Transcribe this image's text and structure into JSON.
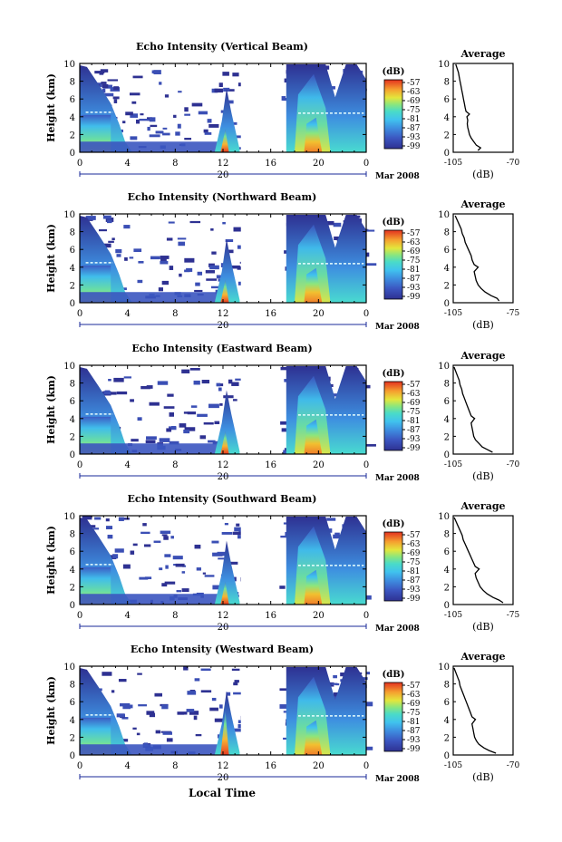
{
  "figure": {
    "xlabel": "Local Time",
    "colors": {
      "colorbar": [
        "#2e3192",
        "#3b4fb5",
        "#3f75d6",
        "#3ea0e8",
        "#3fc6ee",
        "#49dbd0",
        "#6fe39b",
        "#a8e85e",
        "#e8e63a",
        "#f7b532",
        "#f07d2a",
        "#e63a22"
      ],
      "background": "#ffffff"
    }
  },
  "chart_data": [
    {
      "type": "heatmap",
      "title": "Echo Intensity (Vertical Beam)",
      "ylabel": "Height (km)",
      "x_ticks": [
        "0",
        "4",
        "8",
        "12",
        "16",
        "20",
        "0"
      ],
      "x_range_hours": [
        0,
        24
      ],
      "y_ticks": [
        "0",
        "2",
        "4",
        "6",
        "8",
        "10"
      ],
      "ylim": [
        0,
        10
      ],
      "date_day": "20",
      "date_month_year": "Mar 2008",
      "colorbar": {
        "label": "(dB)",
        "ticks": [
          "-57",
          "-63",
          "-69",
          "-75",
          "-81",
          "-87",
          "-93",
          "-99"
        ]
      },
      "data_gap_hours": [
        13.5,
        16.7
      ],
      "profile": {
        "title": "Average",
        "xlabel": "(dB)",
        "xlim": [
          -105,
          -70
        ],
        "x_tick_labels": [
          "-105",
          "-70"
        ],
        "y_ticks": [
          "0",
          "2",
          "4",
          "6",
          "8",
          "10"
        ],
        "points": [
          [
            -90.5,
            0.2
          ],
          [
            -89,
            0.5
          ],
          [
            -91.5,
            0.8
          ],
          [
            -93,
            1.2
          ],
          [
            -94.5,
            1.6
          ],
          [
            -95.5,
            2.0
          ],
          [
            -96,
            2.4
          ],
          [
            -96.5,
            2.8
          ],
          [
            -96.8,
            3.2
          ],
          [
            -96.5,
            3.6
          ],
          [
            -97,
            4.0
          ],
          [
            -95.5,
            4.3
          ],
          [
            -97.5,
            4.6
          ],
          [
            -98,
            5.0
          ],
          [
            -98.5,
            5.5
          ],
          [
            -99,
            6.0
          ],
          [
            -99.5,
            6.5
          ],
          [
            -100,
            7.0
          ],
          [
            -100.5,
            7.5
          ],
          [
            -101,
            8.0
          ],
          [
            -101.5,
            8.5
          ],
          [
            -102,
            9.0
          ],
          [
            -102.8,
            9.5
          ],
          [
            -103.5,
            9.9
          ]
        ]
      }
    },
    {
      "type": "heatmap",
      "title": "Echo Intensity (Northward Beam)",
      "ylabel": "Height (km)",
      "x_ticks": [
        "0",
        "4",
        "8",
        "12",
        "16",
        "20",
        "0"
      ],
      "x_range_hours": [
        0,
        24
      ],
      "y_ticks": [
        "0",
        "2",
        "4",
        "6",
        "8",
        "10"
      ],
      "ylim": [
        0,
        10
      ],
      "date_day": "20",
      "date_month_year": "Mar 2008",
      "colorbar": {
        "label": "(dB)",
        "ticks": [
          "-57",
          "-63",
          "-69",
          "-75",
          "-81",
          "-87",
          "-93",
          "-99"
        ]
      },
      "data_gap_hours": [
        13.5,
        16.7
      ],
      "profile": {
        "title": "Average",
        "xlabel": "(dB)",
        "xlim": [
          -105,
          -75
        ],
        "x_tick_labels": [
          "-105",
          "-75"
        ],
        "y_ticks": [
          "0",
          "2",
          "4",
          "6",
          "8",
          "10"
        ],
        "points": [
          [
            -82,
            0.2
          ],
          [
            -83,
            0.5
          ],
          [
            -86,
            0.8
          ],
          [
            -89,
            1.2
          ],
          [
            -91,
            1.6
          ],
          [
            -92.5,
            2.0
          ],
          [
            -93.5,
            2.5
          ],
          [
            -94,
            3.0
          ],
          [
            -94.5,
            3.5
          ],
          [
            -92.5,
            4.0
          ],
          [
            -94.5,
            4.3
          ],
          [
            -95.5,
            4.8
          ],
          [
            -96,
            5.3
          ],
          [
            -97,
            5.8
          ],
          [
            -98,
            6.3
          ],
          [
            -99,
            6.8
          ],
          [
            -99.5,
            7.3
          ],
          [
            -100.5,
            7.8
          ],
          [
            -101,
            8.3
          ],
          [
            -102,
            8.8
          ],
          [
            -103,
            9.3
          ],
          [
            -104,
            9.8
          ]
        ]
      }
    },
    {
      "type": "heatmap",
      "title": "Echo Intensity (Eastward Beam)",
      "ylabel": "Height (km)",
      "x_ticks": [
        "0",
        "4",
        "8",
        "12",
        "16",
        "20",
        "0"
      ],
      "x_range_hours": [
        0,
        24
      ],
      "y_ticks": [
        "0",
        "2",
        "4",
        "6",
        "8",
        "10"
      ],
      "ylim": [
        0,
        10
      ],
      "date_day": "20",
      "date_month_year": "Mar 2008",
      "colorbar": {
        "label": "(dB)",
        "ticks": [
          "-57",
          "-63",
          "-69",
          "-75",
          "-81",
          "-87",
          "-93",
          "-99"
        ]
      },
      "data_gap_hours": [
        13.5,
        16.7
      ],
      "profile": {
        "title": "Average",
        "xlabel": "(dB)",
        "xlim": [
          -105,
          -70
        ],
        "x_tick_labels": [
          "-105",
          "-70"
        ],
        "y_ticks": [
          "0",
          "2",
          "4",
          "6",
          "8",
          "10"
        ],
        "points": [
          [
            -82,
            0.2
          ],
          [
            -85,
            0.5
          ],
          [
            -88,
            0.8
          ],
          [
            -90,
            1.2
          ],
          [
            -92,
            1.6
          ],
          [
            -93,
            2.0
          ],
          [
            -93.5,
            2.5
          ],
          [
            -94,
            3.0
          ],
          [
            -94.5,
            3.5
          ],
          [
            -92.5,
            4.0
          ],
          [
            -94.5,
            4.3
          ],
          [
            -95.5,
            4.8
          ],
          [
            -96.5,
            5.3
          ],
          [
            -97.5,
            5.8
          ],
          [
            -98.5,
            6.3
          ],
          [
            -99.5,
            6.8
          ],
          [
            -100,
            7.3
          ],
          [
            -101,
            7.8
          ],
          [
            -101.5,
            8.3
          ],
          [
            -102.5,
            8.8
          ],
          [
            -103.5,
            9.3
          ],
          [
            -104.5,
            9.8
          ]
        ]
      }
    },
    {
      "type": "heatmap",
      "title": "Echo Intensity (Southward Beam)",
      "ylabel": "Height (km)",
      "x_ticks": [
        "0",
        "4",
        "8",
        "12",
        "16",
        "20",
        "0"
      ],
      "x_range_hours": [
        0,
        24
      ],
      "y_ticks": [
        "0",
        "2",
        "4",
        "6",
        "8",
        "10"
      ],
      "ylim": [
        0,
        10
      ],
      "date_day": "20",
      "date_month_year": "Mar 2008",
      "colorbar": {
        "label": "(dB)",
        "ticks": [
          "-57",
          "-63",
          "-69",
          "-75",
          "-81",
          "-87",
          "-93",
          "-99"
        ]
      },
      "data_gap_hours": [
        13.5,
        16.7
      ],
      "profile": {
        "title": "Average",
        "xlabel": "(dB)",
        "xlim": [
          -105,
          -75
        ],
        "x_tick_labels": [
          "-105",
          "-75"
        ],
        "y_ticks": [
          "0",
          "2",
          "4",
          "6",
          "8",
          "10"
        ],
        "points": [
          [
            -80,
            0.2
          ],
          [
            -82,
            0.5
          ],
          [
            -85,
            0.8
          ],
          [
            -88,
            1.2
          ],
          [
            -90,
            1.6
          ],
          [
            -91.5,
            2.0
          ],
          [
            -92.5,
            2.5
          ],
          [
            -93.5,
            3.0
          ],
          [
            -94,
            3.5
          ],
          [
            -92,
            4.0
          ],
          [
            -94,
            4.3
          ],
          [
            -95,
            4.8
          ],
          [
            -96,
            5.3
          ],
          [
            -97,
            5.8
          ],
          [
            -98,
            6.3
          ],
          [
            -99,
            6.8
          ],
          [
            -100,
            7.3
          ],
          [
            -100.5,
            7.8
          ],
          [
            -101.5,
            8.3
          ],
          [
            -102.5,
            8.8
          ],
          [
            -103.5,
            9.3
          ],
          [
            -104.5,
            9.8
          ]
        ]
      }
    },
    {
      "type": "heatmap",
      "title": "Echo Intensity (Westward Beam)",
      "ylabel": "Height (km)",
      "x_ticks": [
        "0",
        "4",
        "8",
        "12",
        "16",
        "20",
        "0"
      ],
      "x_range_hours": [
        0,
        24
      ],
      "y_ticks": [
        "0",
        "2",
        "4",
        "6",
        "8",
        "10"
      ],
      "ylim": [
        0,
        10
      ],
      "date_day": "20",
      "date_month_year": "Mar 2008",
      "colorbar": {
        "label": "(dB)",
        "ticks": [
          "-57",
          "-63",
          "-69",
          "-75",
          "-81",
          "-87",
          "-93",
          "-99"
        ]
      },
      "data_gap_hours": [
        13.5,
        16.7
      ],
      "profile": {
        "title": "Average",
        "xlabel": "(dB)",
        "xlim": [
          -105,
          -70
        ],
        "x_tick_labels": [
          "-105",
          "-70"
        ],
        "y_ticks": [
          "0",
          "2",
          "4",
          "6",
          "8",
          "10"
        ],
        "points": [
          [
            -80,
            0.2
          ],
          [
            -84,
            0.5
          ],
          [
            -87,
            0.8
          ],
          [
            -90,
            1.2
          ],
          [
            -91.5,
            1.6
          ],
          [
            -92.5,
            2.0
          ],
          [
            -93,
            2.5
          ],
          [
            -93.5,
            3.0
          ],
          [
            -94,
            3.5
          ],
          [
            -92,
            4.0
          ],
          [
            -94,
            4.3
          ],
          [
            -95,
            4.8
          ],
          [
            -96,
            5.3
          ],
          [
            -97,
            5.8
          ],
          [
            -98,
            6.3
          ],
          [
            -99,
            6.8
          ],
          [
            -100,
            7.3
          ],
          [
            -101,
            7.8
          ],
          [
            -101.5,
            8.3
          ],
          [
            -102.5,
            8.8
          ],
          [
            -103.5,
            9.3
          ],
          [
            -104.5,
            9.8
          ]
        ]
      }
    }
  ]
}
